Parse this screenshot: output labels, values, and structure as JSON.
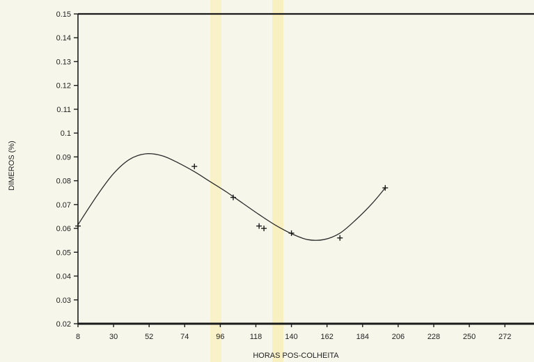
{
  "chart_data": {
    "type": "scatter",
    "title": "",
    "xlabel": "HORAS POS-COLHEITA",
    "ylabel": "DIMEROS (%)",
    "xlim": [
      8,
      290
    ],
    "ylim": [
      0.02,
      0.15
    ],
    "x_ticks": [
      "8",
      "30",
      "52",
      "74",
      "96",
      "118",
      "140",
      "162",
      "184",
      "206",
      "228",
      "250",
      "272"
    ],
    "y_ticks": [
      "0.02",
      "0.03",
      "0.04",
      "0.05",
      "0.06",
      "0.07",
      "0.08",
      "0.09",
      "0.1",
      "0.11",
      "0.12",
      "0.13",
      "0.14",
      "0.15"
    ],
    "series": [
      {
        "marker": "plus",
        "x": [
          8,
          80,
          104,
          120,
          123,
          140,
          170,
          198
        ],
        "y": [
          0.061,
          0.086,
          0.073,
          0.061,
          0.06,
          0.058,
          0.056,
          0.077
        ]
      },
      {
        "style": "fitted-curve",
        "x": [
          8,
          20,
          30,
          40,
          50,
          60,
          70,
          80,
          90,
          100,
          110,
          120,
          130,
          140,
          150,
          160,
          170,
          180,
          190,
          198
        ],
        "y": [
          0.0615,
          0.074,
          0.083,
          0.089,
          0.0913,
          0.0905,
          0.0875,
          0.0838,
          0.0795,
          0.0752,
          0.0705,
          0.0658,
          0.0614,
          0.0578,
          0.0553,
          0.0553,
          0.058,
          0.0637,
          0.0705,
          0.077
        ]
      }
    ],
    "grid": false,
    "legend": "none"
  }
}
